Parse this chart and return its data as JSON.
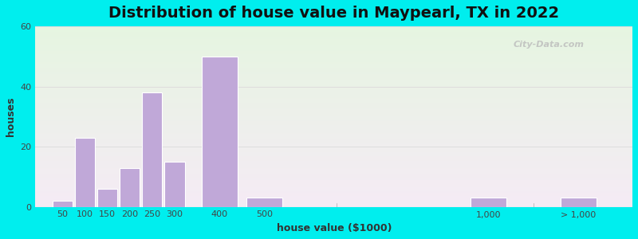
{
  "title": "Distribution of house value in Maypearl, TX in 2022",
  "xlabel": "house value ($1000)",
  "ylabel": "houses",
  "bar_color": "#c0a8d8",
  "bar_edge_color": "#ffffff",
  "background_outer": "#00eeee",
  "ylim": [
    0,
    60
  ],
  "yticks": [
    0,
    20,
    40,
    60
  ],
  "x_positions": [
    50,
    100,
    150,
    200,
    250,
    300,
    400,
    500,
    1000,
    1200
  ],
  "bar_widths": [
    45,
    45,
    45,
    45,
    45,
    45,
    80,
    80,
    80,
    80
  ],
  "values": [
    2,
    23,
    6,
    13,
    38,
    15,
    50,
    3,
    3,
    3
  ],
  "tick_positions": [
    50,
    100,
    150,
    200,
    250,
    300,
    400,
    500,
    1000,
    1200
  ],
  "tick_labels": [
    "50",
    "100",
    "150",
    "200",
    "250",
    "300",
    "400",
    "500",
    "1,000",
    "> 1,000"
  ],
  "xlim": [
    -10,
    1320
  ],
  "watermark": "City-Data.com",
  "title_fontsize": 14,
  "label_fontsize": 9,
  "tick_fontsize": 8
}
